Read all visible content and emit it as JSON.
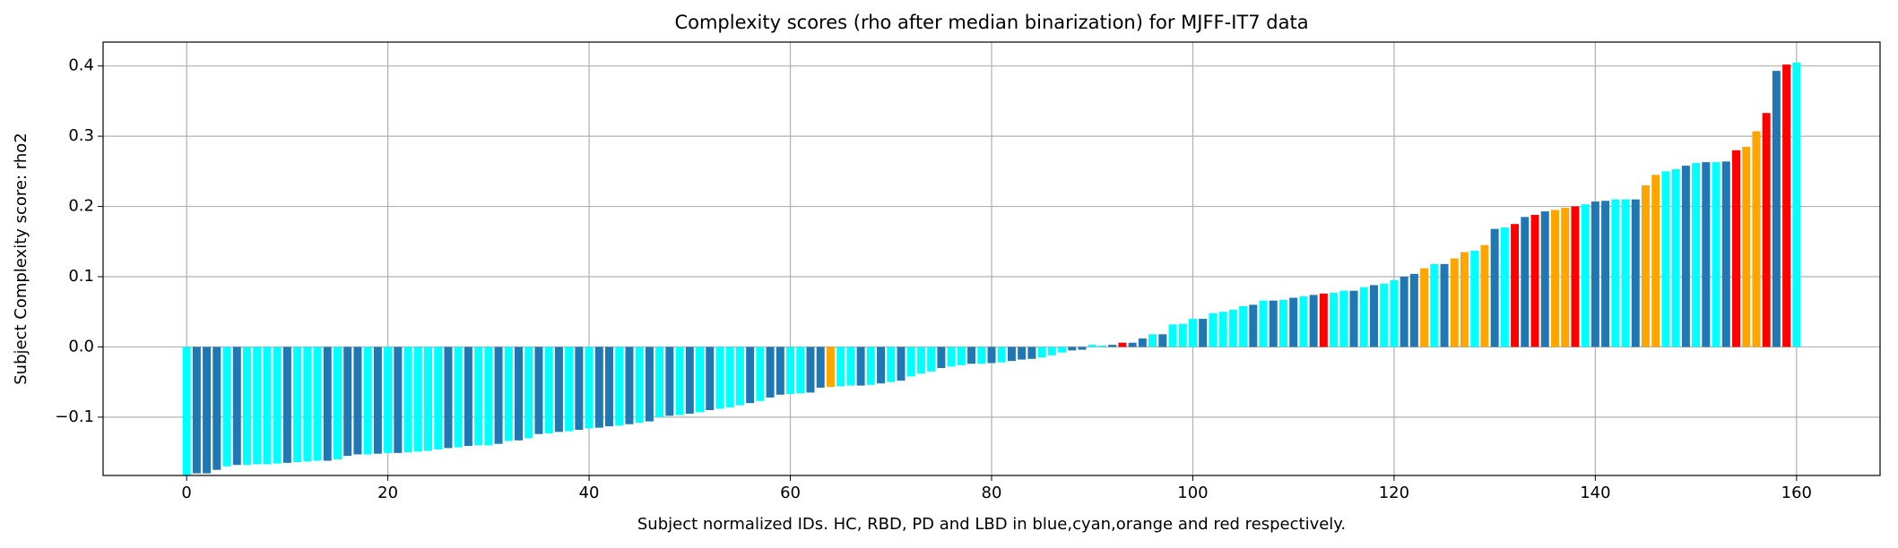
{
  "chart_data": {
    "type": "bar",
    "title": "Complexity scores (rho after median binarization) for MJFF-IT7 data",
    "xlabel": "Subject normalized IDs. HC, RBD, PD and LBD in blue,cyan,orange and red respectively.",
    "ylabel": "Subject Complexity score: rho2",
    "x": [
      0,
      1,
      2,
      3,
      4,
      5,
      6,
      7,
      8,
      9,
      10,
      11,
      12,
      13,
      14,
      15,
      16,
      17,
      18,
      19,
      20,
      21,
      22,
      23,
      24,
      25,
      26,
      27,
      28,
      29,
      30,
      31,
      32,
      33,
      34,
      35,
      36,
      37,
      38,
      39,
      40,
      41,
      42,
      43,
      44,
      45,
      46,
      47,
      48,
      49,
      50,
      51,
      52,
      53,
      54,
      55,
      56,
      57,
      58,
      59,
      60,
      61,
      62,
      63,
      64,
      65,
      66,
      67,
      68,
      69,
      70,
      71,
      72,
      73,
      74,
      75,
      76,
      77,
      78,
      79,
      80,
      81,
      82,
      83,
      84,
      85,
      86,
      87,
      88,
      89,
      90,
      91,
      92,
      93,
      94,
      95,
      96,
      97,
      98,
      99,
      100,
      101,
      102,
      103,
      104,
      105,
      106,
      107,
      108,
      109,
      110,
      111,
      112,
      113,
      114,
      115,
      116,
      117,
      118,
      119,
      120,
      121,
      122,
      123,
      124,
      125,
      126,
      127,
      128,
      129,
      130,
      131,
      132,
      133,
      134,
      135,
      136,
      137,
      138,
      139,
      140,
      141,
      142,
      143,
      144,
      145,
      146,
      147,
      148,
      149,
      150,
      151,
      152,
      153,
      154,
      155,
      156,
      157,
      158,
      159,
      160
    ],
    "values": [
      -0.19,
      -0.18,
      -0.18,
      -0.175,
      -0.17,
      -0.168,
      -0.168,
      -0.167,
      -0.167,
      -0.166,
      -0.165,
      -0.164,
      -0.163,
      -0.162,
      -0.162,
      -0.16,
      -0.155,
      -0.153,
      -0.153,
      -0.152,
      -0.151,
      -0.151,
      -0.15,
      -0.149,
      -0.148,
      -0.146,
      -0.144,
      -0.143,
      -0.141,
      -0.14,
      -0.14,
      -0.138,
      -0.134,
      -0.133,
      -0.13,
      -0.124,
      -0.123,
      -0.121,
      -0.12,
      -0.118,
      -0.116,
      -0.115,
      -0.113,
      -0.112,
      -0.11,
      -0.108,
      -0.106,
      -0.1,
      -0.098,
      -0.097,
      -0.095,
      -0.093,
      -0.09,
      -0.088,
      -0.086,
      -0.083,
      -0.08,
      -0.077,
      -0.072,
      -0.068,
      -0.067,
      -0.066,
      -0.065,
      -0.058,
      -0.057,
      -0.056,
      -0.055,
      -0.055,
      -0.054,
      -0.052,
      -0.05,
      -0.048,
      -0.042,
      -0.038,
      -0.035,
      -0.03,
      -0.028,
      -0.026,
      -0.024,
      -0.024,
      -0.023,
      -0.022,
      -0.02,
      -0.018,
      -0.017,
      -0.015,
      -0.012,
      -0.008,
      -0.005,
      -0.004,
      0.003,
      0.002,
      0.003,
      0.006,
      0.006,
      0.012,
      0.018,
      0.018,
      0.032,
      0.033,
      0.04,
      0.04,
      0.048,
      0.05,
      0.053,
      0.058,
      0.06,
      0.066,
      0.066,
      0.067,
      0.07,
      0.072,
      0.074,
      0.076,
      0.077,
      0.08,
      0.08,
      0.085,
      0.088,
      0.09,
      0.095,
      0.1,
      0.104,
      0.112,
      0.118,
      0.118,
      0.126,
      0.135,
      0.137,
      0.145,
      0.168,
      0.17,
      0.175,
      0.185,
      0.188,
      0.193,
      0.195,
      0.198,
      0.2,
      0.203,
      0.207,
      0.208,
      0.21,
      0.21,
      0.21,
      0.23,
      0.245,
      0.25,
      0.253,
      0.258,
      0.262,
      0.263,
      0.263,
      0.264,
      0.28,
      0.285,
      0.307,
      0.333,
      0.393,
      0.402,
      0.405
    ],
    "colors": [
      "#00ffff",
      "#1f77b4",
      "#1f77b4",
      "#1f77b4",
      "#00ffff",
      "#1f77b4",
      "#00ffff",
      "#00ffff",
      "#00ffff",
      "#00ffff",
      "#1f77b4",
      "#00ffff",
      "#00ffff",
      "#00ffff",
      "#1f77b4",
      "#00ffff",
      "#1f77b4",
      "#1f77b4",
      "#00ffff",
      "#1f77b4",
      "#00ffff",
      "#1f77b4",
      "#00ffff",
      "#00ffff",
      "#00ffff",
      "#00ffff",
      "#1f77b4",
      "#00ffff",
      "#1f77b4",
      "#00ffff",
      "#00ffff",
      "#1f77b4",
      "#00ffff",
      "#1f77b4",
      "#00ffff",
      "#1f77b4",
      "#00ffff",
      "#1f77b4",
      "#00ffff",
      "#1f77b4",
      "#00ffff",
      "#1f77b4",
      "#1f77b4",
      "#00ffff",
      "#1f77b4",
      "#00ffff",
      "#1f77b4",
      "#00ffff",
      "#1f77b4",
      "#00ffff",
      "#1f77b4",
      "#00ffff",
      "#1f77b4",
      "#00ffff",
      "#00ffff",
      "#00ffff",
      "#1f77b4",
      "#00ffff",
      "#1f77b4",
      "#1f77b4",
      "#00ffff",
      "#00ffff",
      "#1f77b4",
      "#1f77b4",
      "#ffa500",
      "#00ffff",
      "#00ffff",
      "#1f77b4",
      "#00ffff",
      "#1f77b4",
      "#00ffff",
      "#1f77b4",
      "#00ffff",
      "#00ffff",
      "#00ffff",
      "#1f77b4",
      "#00ffff",
      "#00ffff",
      "#1f77b4",
      "#00ffff",
      "#1f77b4",
      "#00ffff",
      "#1f77b4",
      "#1f77b4",
      "#1f77b4",
      "#00ffff",
      "#00ffff",
      "#00ffff",
      "#1f77b4",
      "#1f77b4",
      "#00ffff",
      "#00ffff",
      "#1f77b4",
      "#ff0000",
      "#1f77b4",
      "#1f77b4",
      "#00ffff",
      "#1f77b4",
      "#00ffff",
      "#00ffff",
      "#00ffff",
      "#1f77b4",
      "#00ffff",
      "#00ffff",
      "#00ffff",
      "#00ffff",
      "#1f77b4",
      "#00ffff",
      "#1f77b4",
      "#00ffff",
      "#1f77b4",
      "#00ffff",
      "#1f77b4",
      "#ff0000",
      "#00ffff",
      "#00ffff",
      "#1f77b4",
      "#00ffff",
      "#1f77b4",
      "#00ffff",
      "#00ffff",
      "#1f77b4",
      "#1f77b4",
      "#ffa500",
      "#00ffff",
      "#1f77b4",
      "#ffa500",
      "#ffa500",
      "#00ffff",
      "#ffa500",
      "#1f77b4",
      "#00ffff",
      "#ff0000",
      "#1f77b4",
      "#ff0000",
      "#1f77b4",
      "#ffa500",
      "#ffa500",
      "#ff0000",
      "#00ffff",
      "#1f77b4",
      "#1f77b4",
      "#00ffff",
      "#00ffff",
      "#1f77b4",
      "#ffa500",
      "#ffa500",
      "#00ffff",
      "#00ffff",
      "#1f77b4",
      "#00ffff",
      "#1f77b4",
      "#00ffff",
      "#1f77b4",
      "#ff0000",
      "#ffa500",
      "#ffa500",
      "#ff0000",
      "#1f77b4",
      "#ff0000",
      "#00ffff"
    ],
    "xlim": [
      -8.3,
      168.3
    ],
    "xticks": [
      0,
      20,
      40,
      60,
      80,
      100,
      120,
      140,
      160
    ],
    "ylim": [
      -0.183,
      0.434
    ],
    "yticks": [
      {
        "value": -0.1,
        "label": "−0.1"
      },
      {
        "value": 0,
        "label": "0.0"
      },
      0.1,
      0.2,
      0.3,
      0.4
    ],
    "grid": true
  }
}
